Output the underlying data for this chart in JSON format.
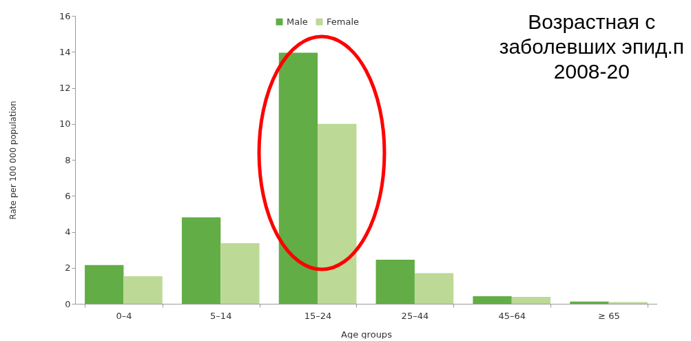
{
  "chart_data": {
    "type": "bar",
    "title": "Возрастная с\nзаболевших эпид.п\n2008-20",
    "xlabel": "Age groups",
    "ylabel": "Rate per 100 000 population",
    "categories": [
      "0–4",
      "5–14",
      "15–24",
      "25–44",
      "45–64",
      "≥ 65"
    ],
    "series": [
      {
        "name": "Male",
        "color": "#62ad46",
        "values": [
          2.15,
          4.8,
          13.95,
          2.45,
          0.42,
          0.12
        ]
      },
      {
        "name": "Female",
        "color": "#bdd996",
        "values": [
          1.53,
          3.37,
          10.0,
          1.7,
          0.38,
          0.1
        ]
      }
    ],
    "ylim": [
      0,
      16
    ],
    "yticks": [
      0,
      2,
      4,
      6,
      8,
      10,
      12,
      14,
      16
    ],
    "grid": false,
    "legend": "top"
  }
}
